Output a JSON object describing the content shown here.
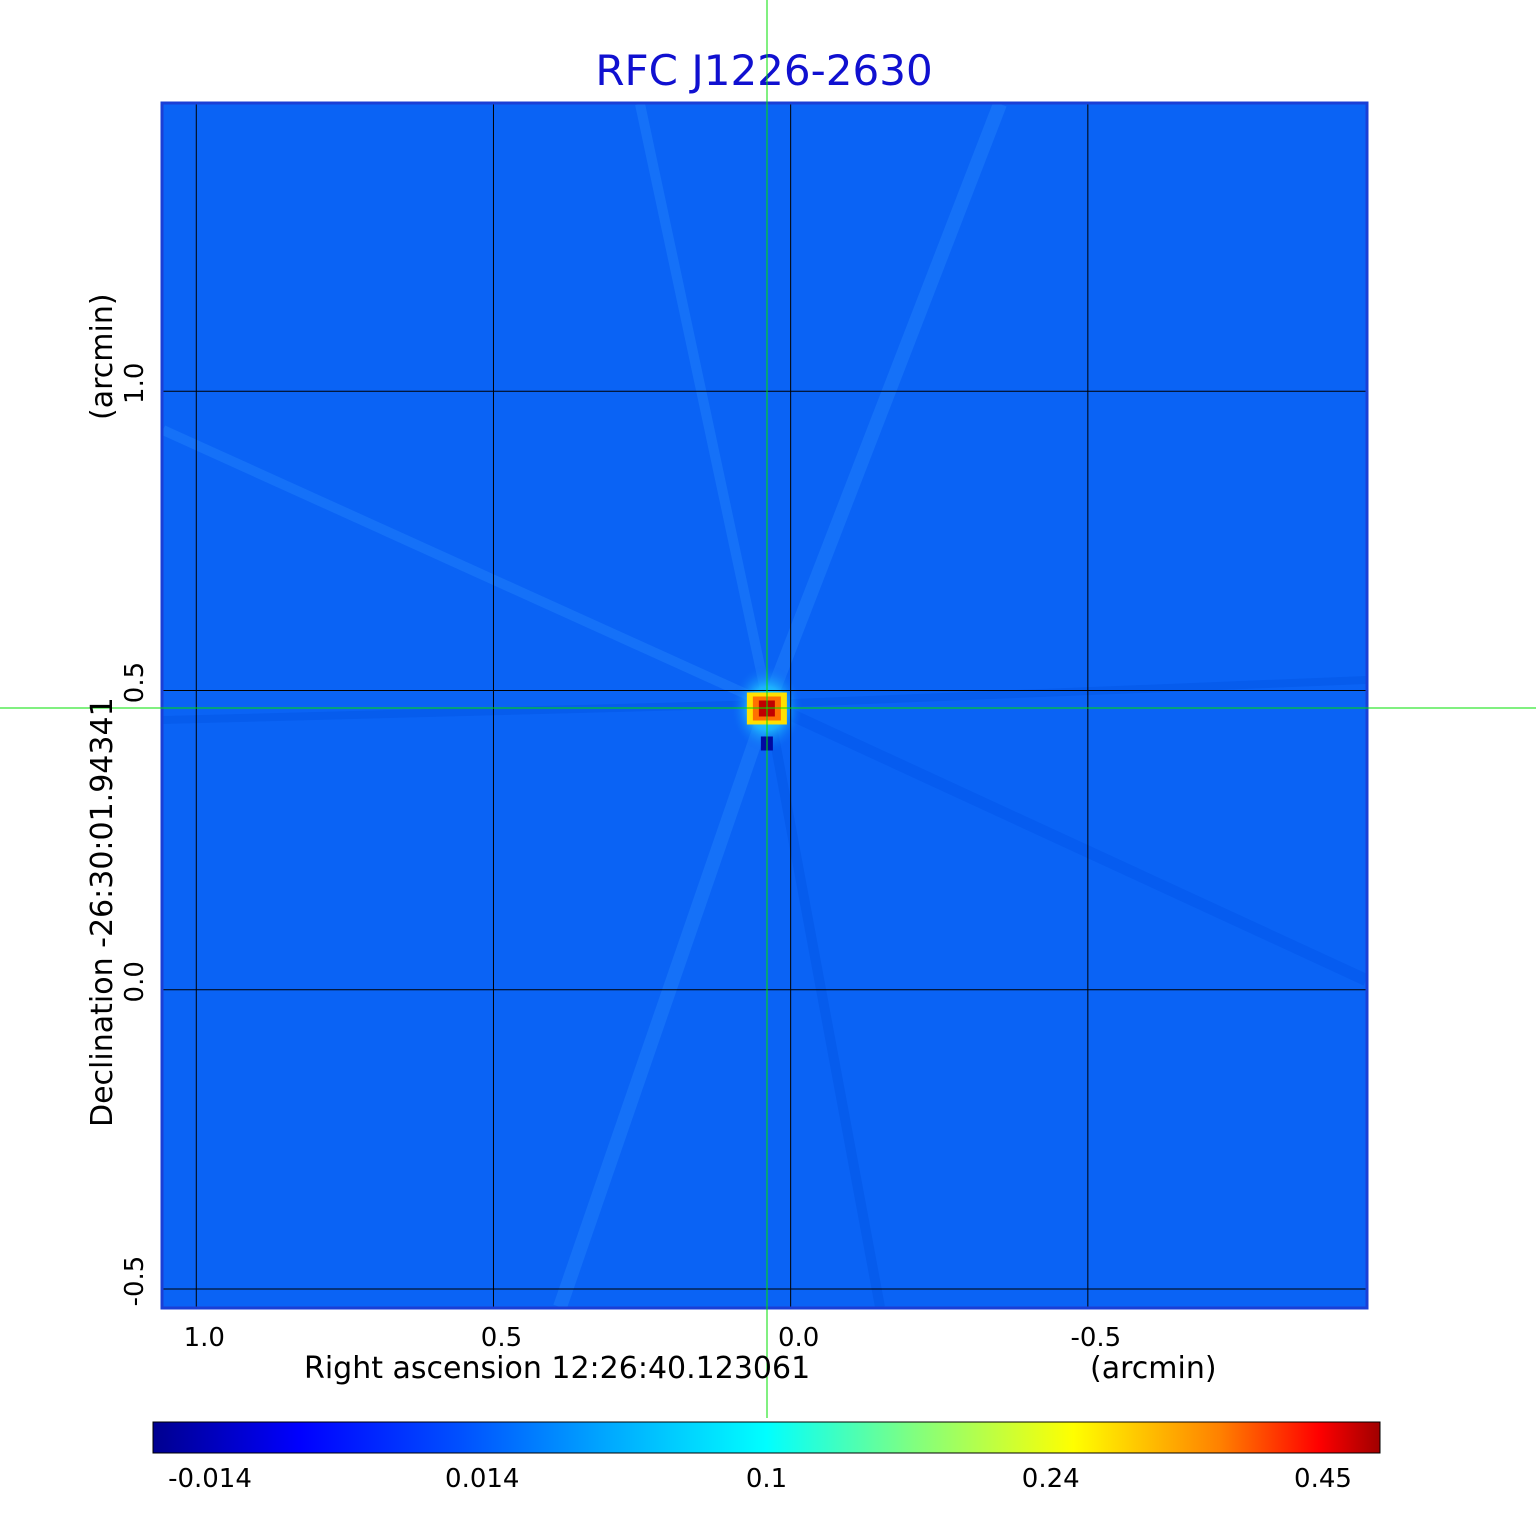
{
  "chart_data": {
    "type": "heatmap",
    "title": "RFC J1226-2630",
    "xlabel": "Right ascension  12:26:40.123061",
    "xunit": "(arcmin)",
    "ylabel": "Declination  -26:30:01.94341",
    "yunit": "(arcmin)",
    "x_ticks": [
      {
        "value": 1.0,
        "label": "1.0"
      },
      {
        "value": 0.5,
        "label": "0.5"
      },
      {
        "value": 0.0,
        "label": "0.0"
      },
      {
        "value": -0.5,
        "label": "-0.5"
      }
    ],
    "y_ticks": [
      {
        "value": 1.0,
        "label": "1.0"
      },
      {
        "value": 0.5,
        "label": "0.5"
      },
      {
        "value": 0.0,
        "label": "0.0"
      },
      {
        "value": -0.5,
        "label": "-0.5"
      }
    ],
    "xlim": [
      1.056,
      -0.968
    ],
    "ylim": [
      -0.53,
      1.48
    ],
    "grid": true,
    "colormap": "jet",
    "colorbar": {
      "position": "bottom",
      "ticks": [
        "-0.014",
        "0.014",
        "0.1",
        "0.24",
        "0.45"
      ]
    },
    "crosshair_color": "#00e000",
    "peak": {
      "ra_offset": 0.04,
      "dec_offset": 0.47,
      "value": 0.45
    },
    "background_value": 0.0
  },
  "colors": {
    "title": "#1010d0",
    "frame": "#1a3fd6",
    "background_map": "#0a63f5",
    "grid": "#000000",
    "crosshair": "#00e000"
  }
}
